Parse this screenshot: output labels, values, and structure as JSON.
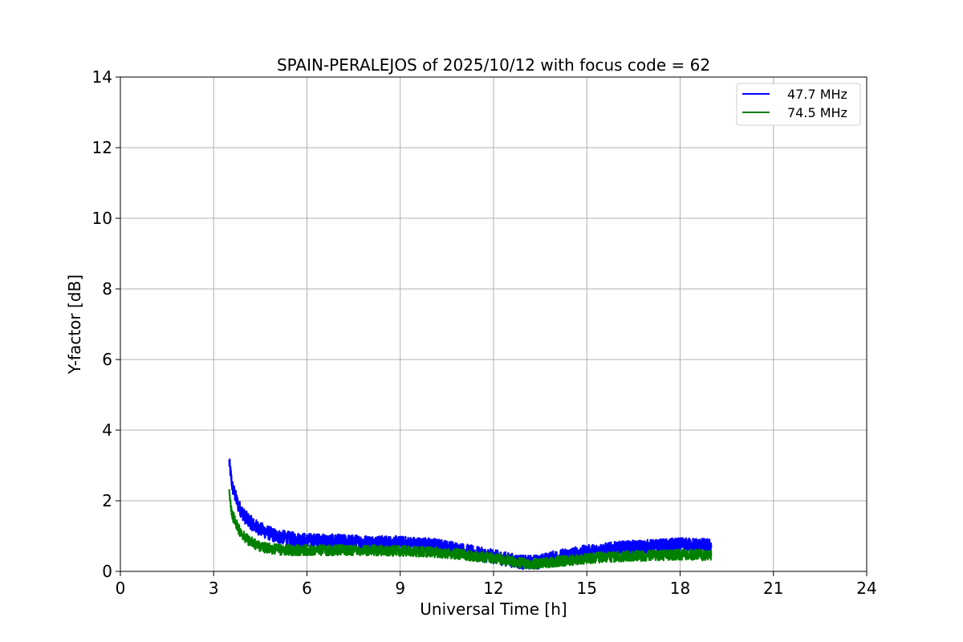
{
  "chart_data": {
    "type": "line",
    "title": "SPAIN-PERALEJOS of 2025/10/12 with focus code = 62",
    "xlabel": "Universal Time [h]",
    "ylabel": "Y-factor [dB]",
    "xlim": [
      0,
      24
    ],
    "ylim": [
      0,
      14
    ],
    "xticks": [
      0,
      3,
      6,
      9,
      12,
      15,
      18,
      21,
      24
    ],
    "yticks": [
      0,
      2,
      4,
      6,
      8,
      10,
      12,
      14
    ],
    "xtick_labels": [
      "0",
      "3",
      "6",
      "9",
      "12",
      "15",
      "18",
      "21",
      "24"
    ],
    "ytick_labels": [
      "0",
      "2",
      "4",
      "6",
      "8",
      "10",
      "12",
      "14"
    ],
    "grid": true,
    "legend_position": "top-right",
    "series": [
      {
        "name": "47.7 MHz",
        "color": "#0000ff",
        "noise_band_db": 0.2,
        "x": [
          3.5,
          3.6,
          3.8,
          4.0,
          4.3,
          4.6,
          5.0,
          5.5,
          6.0,
          7.0,
          8.0,
          9.0,
          10.0,
          10.5,
          11.0,
          11.5,
          12.0,
          12.5,
          13.0,
          13.5,
          14.0,
          14.5,
          15.0,
          15.5,
          16.0,
          16.5,
          17.0,
          17.5,
          18.0,
          18.5,
          19.0
        ],
        "values": [
          3.1,
          2.4,
          1.85,
          1.55,
          1.3,
          1.15,
          1.0,
          0.92,
          0.88,
          0.85,
          0.82,
          0.8,
          0.75,
          0.68,
          0.6,
          0.5,
          0.42,
          0.33,
          0.25,
          0.28,
          0.4,
          0.48,
          0.55,
          0.6,
          0.65,
          0.68,
          0.7,
          0.72,
          0.75,
          0.75,
          0.72
        ]
      },
      {
        "name": "74.5 MHz",
        "color": "#008000",
        "noise_band_db": 0.15,
        "x": [
          3.5,
          3.6,
          3.8,
          4.0,
          4.3,
          4.6,
          5.0,
          5.5,
          6.0,
          7.0,
          8.0,
          9.0,
          10.0,
          10.5,
          11.0,
          11.5,
          12.0,
          12.5,
          13.0,
          13.5,
          14.0,
          14.5,
          15.0,
          15.5,
          16.0,
          16.5,
          17.0,
          17.5,
          18.0,
          18.5,
          19.0
        ],
        "values": [
          2.2,
          1.6,
          1.2,
          0.95,
          0.78,
          0.68,
          0.62,
          0.6,
          0.6,
          0.6,
          0.6,
          0.58,
          0.55,
          0.52,
          0.48,
          0.42,
          0.38,
          0.3,
          0.22,
          0.22,
          0.28,
          0.32,
          0.36,
          0.4,
          0.42,
          0.44,
          0.45,
          0.46,
          0.47,
          0.47,
          0.45
        ]
      }
    ]
  }
}
